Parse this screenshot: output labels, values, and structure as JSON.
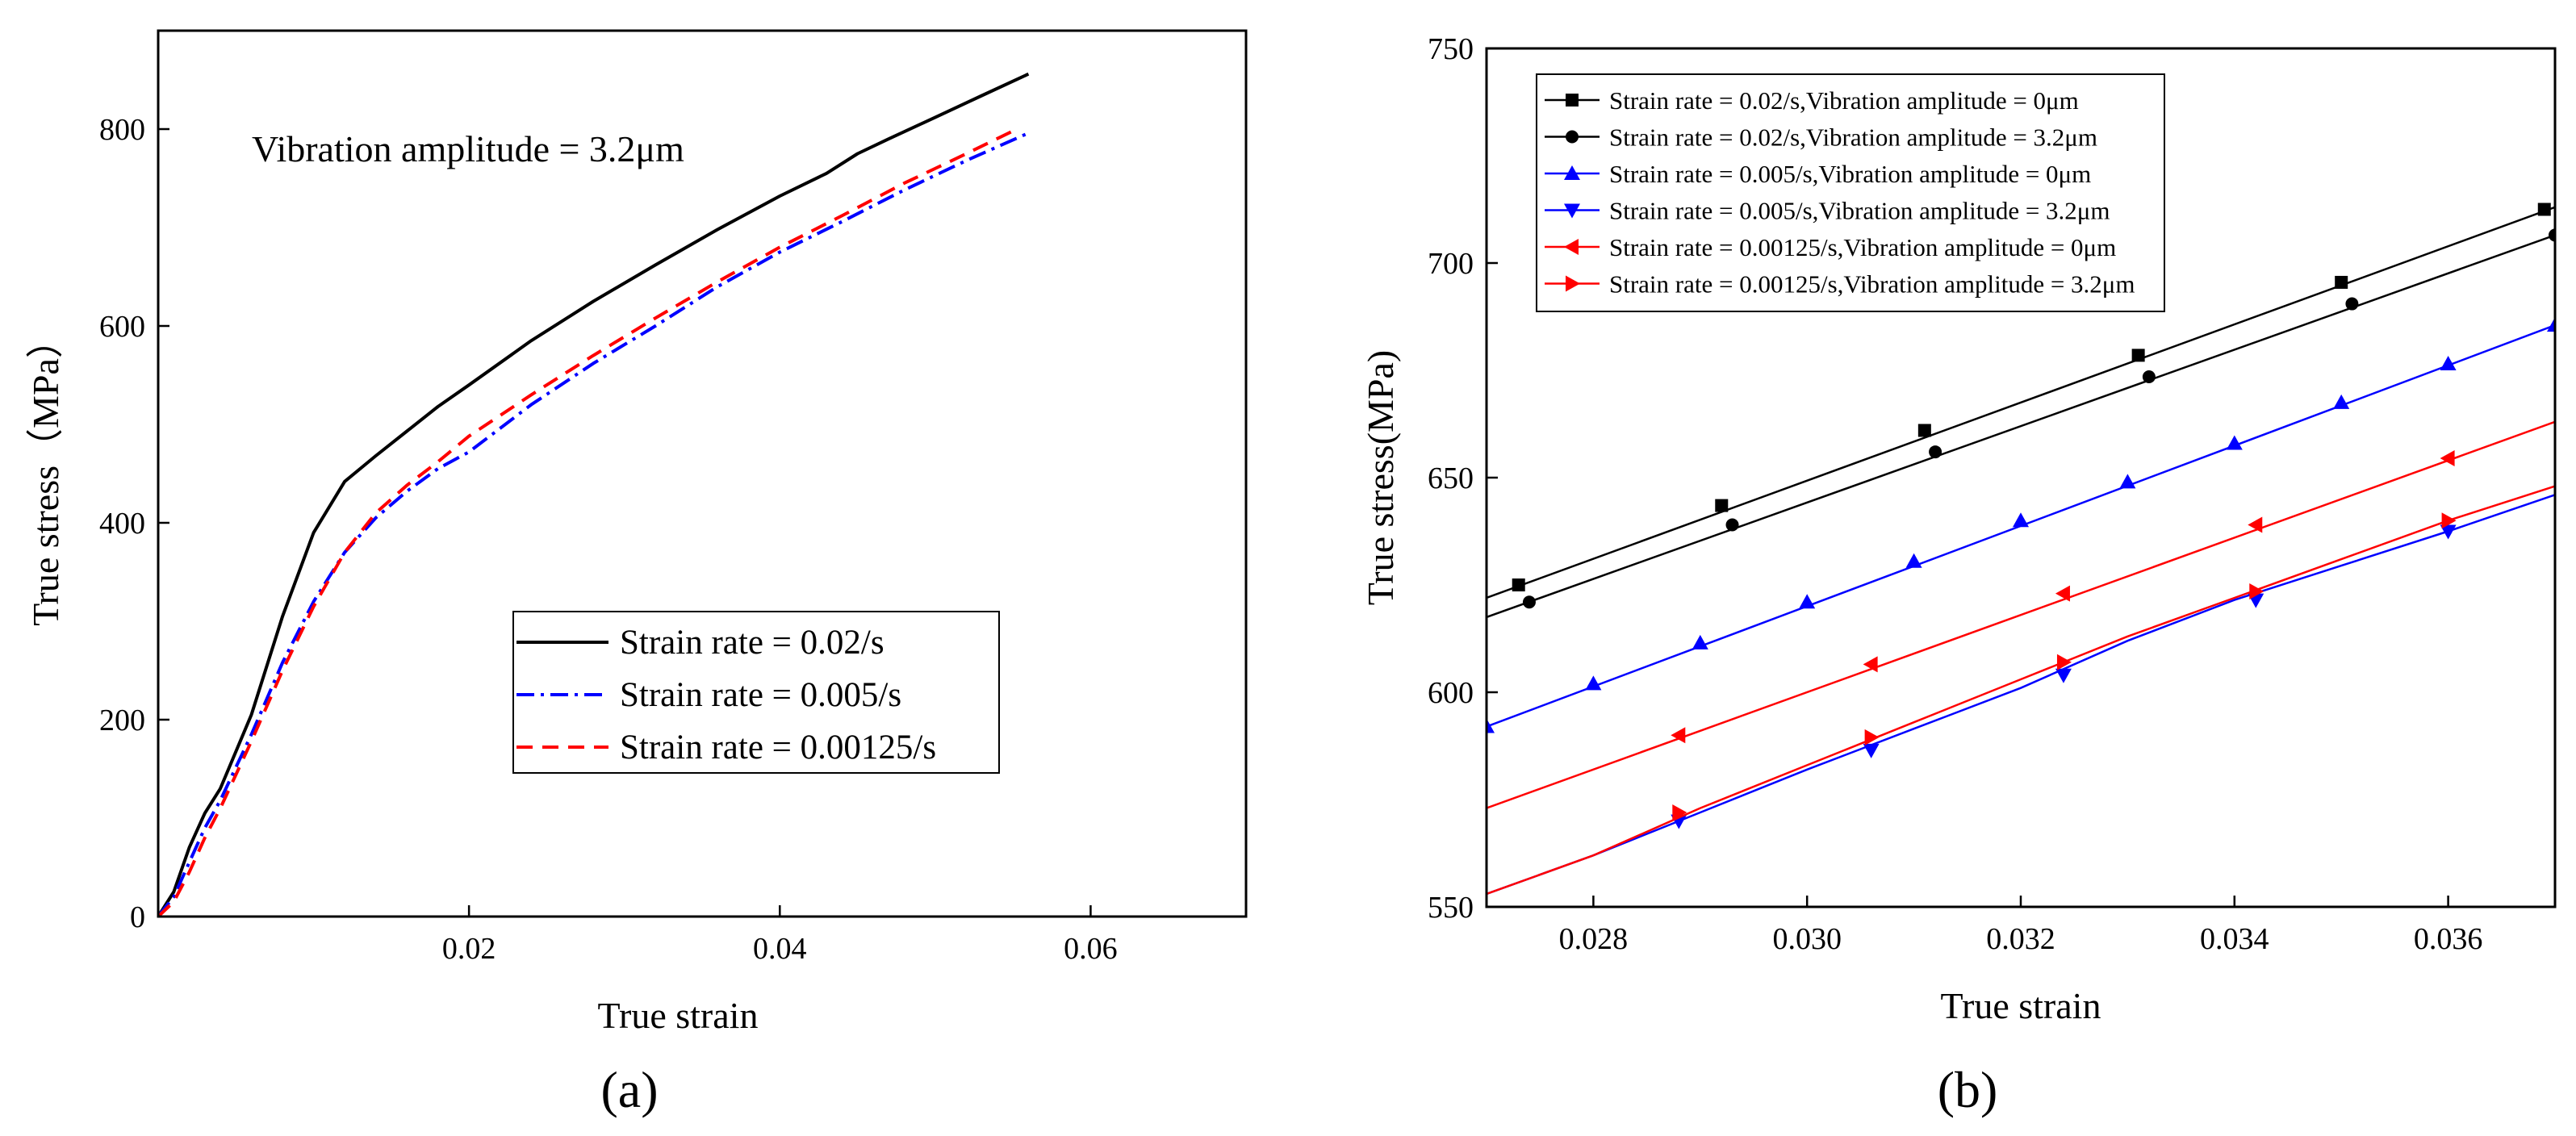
{
  "panel_labels": {
    "a": "(a)",
    "b": "(b)"
  },
  "chart_data": [
    {
      "type": "line",
      "panel": "(a)",
      "annotation": "Vibration amplitude = 3.2μm",
      "xlabel": "True strain",
      "ylabel": "True stress（MPa）",
      "xlim": [
        0,
        0.07
      ],
      "ylim": [
        0,
        900
      ],
      "xticks": [
        0.02,
        0.04,
        0.06
      ],
      "xtick_labels": [
        "0.02",
        "0.04",
        "0.06"
      ],
      "yticks": [
        0,
        200,
        400,
        600,
        800
      ],
      "ytick_labels": [
        "0",
        "200",
        "400",
        "600",
        "800"
      ],
      "legend_position": "center-right",
      "series": [
        {
          "name": "Strain rate = 0.02/s",
          "color": "#000000",
          "dash": "solid",
          "x": [
            0,
            0.001,
            0.002,
            0.003,
            0.004,
            0.006,
            0.008,
            0.01,
            0.012,
            0.014,
            0.016,
            0.018,
            0.02,
            0.024,
            0.028,
            0.032,
            0.036,
            0.04,
            0.043,
            0.045,
            0.047,
            0.05,
            0.053,
            0.056
          ],
          "values": [
            0,
            25,
            70,
            105,
            130,
            205,
            305,
            390,
            442,
            468,
            493,
            518,
            540,
            585,
            625,
            662,
            698,
            732,
            755,
            775,
            790,
            812,
            834,
            856
          ]
        },
        {
          "name": "Strain rate = 0.005/s",
          "color": "#0000ff",
          "dash": "dashdot",
          "x": [
            0,
            0.001,
            0.002,
            0.003,
            0.004,
            0.006,
            0.008,
            0.01,
            0.012,
            0.014,
            0.016,
            0.018,
            0.02,
            0.024,
            0.028,
            0.032,
            0.036,
            0.04,
            0.044,
            0.048,
            0.052,
            0.056
          ],
          "values": [
            0,
            20,
            55,
            90,
            118,
            185,
            258,
            320,
            370,
            405,
            432,
            455,
            472,
            520,
            562,
            600,
            640,
            675,
            706,
            738,
            768,
            796
          ]
        },
        {
          "name": "Strain rate = 0.00125/s",
          "color": "#ff0000",
          "dash": "dashed",
          "x": [
            0,
            0.001,
            0.002,
            0.003,
            0.004,
            0.006,
            0.008,
            0.01,
            0.012,
            0.014,
            0.016,
            0.018,
            0.02,
            0.024,
            0.028,
            0.032,
            0.036,
            0.04,
            0.044,
            0.048,
            0.052,
            0.055
          ],
          "values": [
            0,
            15,
            45,
            80,
            110,
            178,
            250,
            315,
            370,
            410,
            438,
            462,
            488,
            530,
            570,
            608,
            645,
            680,
            712,
            745,
            775,
            798
          ]
        }
      ]
    },
    {
      "type": "line",
      "panel": "(b)",
      "xlabel": "True strain",
      "ylabel": "True stress(MPa)",
      "xlim": [
        0.027,
        0.037
      ],
      "ylim": [
        550,
        750
      ],
      "xticks": [
        0.028,
        0.03,
        0.032,
        0.034,
        0.036
      ],
      "xtick_labels": [
        "0.028",
        "0.030",
        "0.032",
        "0.034",
        "0.036"
      ],
      "yticks": [
        550,
        600,
        650,
        700,
        750
      ],
      "ytick_labels": [
        "550",
        "600",
        "650",
        "700",
        "750"
      ],
      "legend_position": "top-left",
      "series": [
        {
          "name": "Strain rate = 0.02/s,Vibration amplitude = 0μm",
          "color": "#000000",
          "marker": "square",
          "x": [
            0.027,
            0.037
          ],
          "values": [
            622,
            713
          ],
          "marker_x": [
            0.0273,
            0.0292,
            0.0311,
            0.0331,
            0.035,
            0.0369
          ],
          "marker_values": [
            625,
            643.5,
            661,
            678.5,
            695.5,
            712.5
          ]
        },
        {
          "name": "Strain rate = 0.02/s,Vibration amplitude = 3.2μm",
          "color": "#000000",
          "marker": "circle",
          "x": [
            0.027,
            0.037
          ],
          "values": [
            617.5,
            706.5
          ],
          "marker_x": [
            0.0274,
            0.0293,
            0.0312,
            0.0332,
            0.0351,
            0.037
          ],
          "marker_values": [
            621,
            639,
            656,
            673.5,
            690.5,
            706.5
          ]
        },
        {
          "name": "Strain rate = 0.005/s,Vibration amplitude = 0μm",
          "color": "#0000ff",
          "marker": "triangle-up",
          "x": [
            0.027,
            0.037
          ],
          "values": [
            592,
            685.5
          ],
          "marker_x": [
            0.027,
            0.028,
            0.029,
            0.03,
            0.031,
            0.032,
            0.033,
            0.034,
            0.035,
            0.036,
            0.037
          ],
          "marker_values": [
            592,
            602,
            611.5,
            621,
            630.5,
            640,
            649,
            658,
            667.5,
            676.5,
            685.5
          ]
        },
        {
          "name": "Strain rate = 0.005/s,Vibration amplitude = 3.2μm",
          "color": "#0000ff",
          "marker": "triangle-down",
          "x": [
            0.027,
            0.028,
            0.029,
            0.03,
            0.031,
            0.032,
            0.033,
            0.034,
            0.035,
            0.036,
            0.037
          ],
          "values": [
            553,
            562,
            572,
            582,
            591.5,
            601,
            612,
            621.5,
            629.5,
            637.5,
            646
          ],
          "marker_x": [
            0.0288,
            0.0306,
            0.0324,
            0.0342,
            0.036
          ],
          "marker_values": [
            570,
            586.5,
            604,
            621.5,
            637.5
          ]
        },
        {
          "name": "Strain rate = 0.00125/s,Vibration amplitude = 0μm",
          "color": "#ff0000",
          "marker": "triangle-left",
          "x": [
            0.027,
            0.037
          ],
          "values": [
            573,
            663
          ],
          "marker_x": [
            0.0288,
            0.0306,
            0.0324,
            0.0342,
            0.036
          ],
          "marker_values": [
            590,
            606.5,
            623,
            639,
            654.5
          ]
        },
        {
          "name": "Strain rate = 0.00125/s,Vibration amplitude = 3.2μm",
          "color": "#ff0000",
          "marker": "triangle-right",
          "x": [
            0.027,
            0.028,
            0.029,
            0.03,
            0.031,
            0.032,
            0.033,
            0.034,
            0.035,
            0.036,
            0.037
          ],
          "values": [
            553,
            562,
            573,
            583,
            593,
            603,
            613,
            622,
            631,
            640,
            648
          ],
          "marker_x": [
            0.0288,
            0.0306,
            0.0324,
            0.0342,
            0.036
          ],
          "marker_values": [
            572,
            589.5,
            607,
            623.5,
            640
          ]
        }
      ]
    }
  ]
}
